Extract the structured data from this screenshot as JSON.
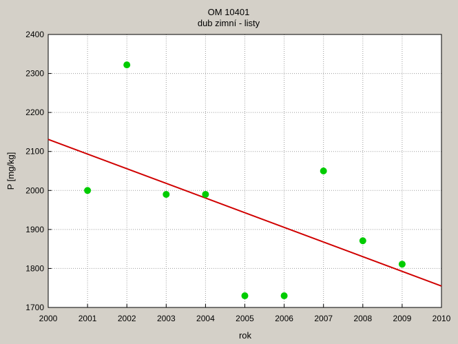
{
  "chart_data": {
    "type": "scatter",
    "title": "OM 10401",
    "subtitle": "dub zimní - listy",
    "xlabel": "rok",
    "ylabel": "P [mg/kg]",
    "xlim": [
      2000,
      2010
    ],
    "ylim": [
      1700,
      2400
    ],
    "x_ticks": [
      2000,
      2001,
      2002,
      2003,
      2004,
      2005,
      2006,
      2007,
      2008,
      2009,
      2010
    ],
    "y_ticks": [
      1700,
      1800,
      1900,
      2000,
      2100,
      2200,
      2300,
      2400
    ],
    "grid": true,
    "series": [
      {
        "kind": "points",
        "color": "#00cc00",
        "points": [
          {
            "x": 2001,
            "y": 2000
          },
          {
            "x": 2002,
            "y": 2322
          },
          {
            "x": 2003,
            "y": 1990
          },
          {
            "x": 2004,
            "y": 1990
          },
          {
            "x": 2005,
            "y": 1730
          },
          {
            "x": 2006,
            "y": 1730
          },
          {
            "x": 2007,
            "y": 2050
          },
          {
            "x": 2008,
            "y": 1871
          },
          {
            "x": 2009,
            "y": 1811
          }
        ]
      },
      {
        "kind": "trend-line",
        "color": "#d00000",
        "points": [
          {
            "x": 2000,
            "y": 2131
          },
          {
            "x": 2010,
            "y": 1755
          }
        ]
      }
    ]
  }
}
